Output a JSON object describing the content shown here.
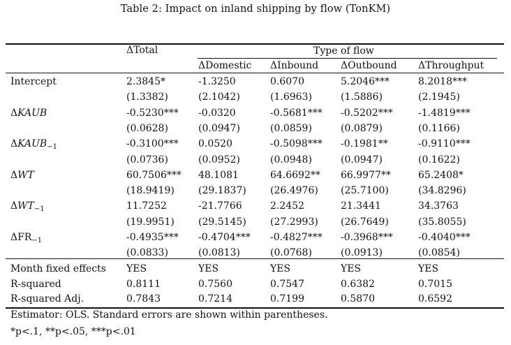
{
  "caption": "Table 2: Impact on inland shipping by flow (TonKM)",
  "header": {
    "total": "ΔTotal",
    "group": "Type of flow",
    "columns": [
      "ΔDomestic",
      "ΔInbound",
      "ΔOutbound",
      "ΔThroughput"
    ]
  },
  "rows": [
    {
      "label": "Intercept",
      "coef": [
        "2.3845*",
        "-1.3250",
        "0.6070",
        "5.2046***",
        "8.2018***"
      ],
      "se": [
        "(1.3382)",
        "(2.1042)",
        "(1.6963)",
        "(1.5886)",
        "(2.1945)"
      ]
    },
    {
      "label_delta": "Δ",
      "label_main": "KAUB",
      "label_sub": "",
      "coef": [
        "-0.5230***",
        "-0.0320",
        "-0.5681***",
        "-0.5202***",
        "-1.4819***"
      ],
      "se": [
        "(0.0628)",
        "(0.0947)",
        "(0.0859)",
        "(0.0879)",
        "(0.1166)"
      ]
    },
    {
      "label_delta": "Δ",
      "label_main": "KAUB",
      "label_sub": "−1",
      "coef": [
        "-0.3100***",
        "0.0520",
        "-0.5098***",
        "-0.1981**",
        "-0.9110***"
      ],
      "se": [
        "(0.0736)",
        "(0.0952)",
        "(0.0948)",
        "(0.0947)",
        "(0.1622)"
      ]
    },
    {
      "label_delta": "Δ",
      "label_main": "WT",
      "label_sub": "",
      "coef": [
        "60.7506***",
        "48.1081",
        "64.6692**",
        "66.9977**",
        "65.2408*"
      ],
      "se": [
        "(18.9419)",
        "(29.1837)",
        "(26.4976)",
        "(25.7100)",
        "(34.8296)"
      ]
    },
    {
      "label_delta": "Δ",
      "label_main": "WT",
      "label_sub": "−1",
      "coef": [
        "11.7252",
        "-21.7766",
        "2.2452",
        "21.3441",
        "34.3763"
      ],
      "se": [
        "(19.9951)",
        "(29.5145)",
        "(27.2993)",
        "(26.7649)",
        "(35.8055)"
      ]
    },
    {
      "label_delta": "Δ",
      "label_main": "FR",
      "label_sub": "−1",
      "upright": true,
      "coef": [
        "-0.4935***",
        "-0.4704***",
        "-0.4827***",
        "-0.3968***",
        "-0.4040***"
      ],
      "se": [
        "(0.0833)",
        "(0.0813)",
        "(0.0768)",
        "(0.0913)",
        "(0.0854)"
      ]
    }
  ],
  "stats": [
    {
      "label": "Month fixed effects",
      "values": [
        "YES",
        "YES",
        "YES",
        "YES",
        "YES"
      ]
    },
    {
      "label": "R-squared",
      "values": [
        "0.8111",
        "0.7560",
        "0.7547",
        "0.6382",
        "0.7015"
      ]
    },
    {
      "label": "R-squared Adj.",
      "values": [
        "0.7843",
        "0.7214",
        "0.7199",
        "0.5870",
        "0.6592"
      ]
    }
  ],
  "notes": [
    "Estimator: OLS. Standard errors are shown within parentheses.",
    "*p<.1, **p<.05, ***p<.01"
  ]
}
